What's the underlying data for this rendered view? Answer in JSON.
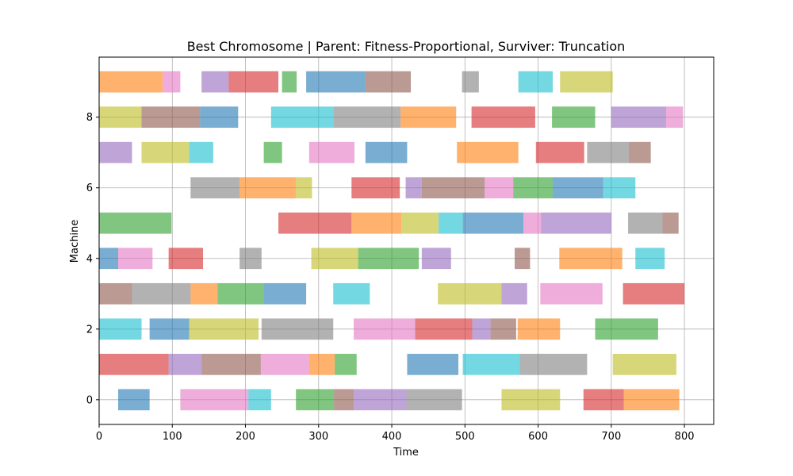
{
  "chart_data": {
    "type": "gantt",
    "title": "Best Chromosome | Parent: Fitness-Proportional, Surviver: Truncation",
    "xlabel": "Time",
    "ylabel": "Machine",
    "xlim": [
      0,
      840
    ],
    "ylim": [
      -0.7,
      9.7
    ],
    "xticks": [
      0,
      100,
      200,
      300,
      400,
      500,
      600,
      700,
      800
    ],
    "yticks": [
      0,
      2,
      4,
      6,
      8
    ],
    "grid": true,
    "bar_opacity": 0.6,
    "job_colors": {
      "0": "#1f77b4",
      "1": "#ff7f0e",
      "2": "#2ca02c",
      "3": "#d62728",
      "4": "#9467bd",
      "5": "#8c564b",
      "6": "#e377c2",
      "7": "#7f7f7f",
      "8": "#bcbd22",
      "9": "#17becf"
    },
    "machines": [
      {
        "machine": 0,
        "tasks": [
          {
            "job": 0,
            "start": 26,
            "end": 69
          },
          {
            "job": 6,
            "start": 111,
            "end": 204
          },
          {
            "job": 9,
            "start": 204,
            "end": 235
          },
          {
            "job": 2,
            "start": 269,
            "end": 321
          },
          {
            "job": 5,
            "start": 321,
            "end": 348
          },
          {
            "job": 4,
            "start": 348,
            "end": 420
          },
          {
            "job": 7,
            "start": 420,
            "end": 496
          },
          {
            "job": 8,
            "start": 550,
            "end": 630
          },
          {
            "job": 3,
            "start": 662,
            "end": 717
          },
          {
            "job": 1,
            "start": 717,
            "end": 793
          }
        ]
      },
      {
        "machine": 1,
        "tasks": [
          {
            "job": 3,
            "start": 0,
            "end": 95
          },
          {
            "job": 4,
            "start": 95,
            "end": 140
          },
          {
            "job": 5,
            "start": 140,
            "end": 221
          },
          {
            "job": 6,
            "start": 221,
            "end": 287
          },
          {
            "job": 1,
            "start": 287,
            "end": 322
          },
          {
            "job": 2,
            "start": 322,
            "end": 352
          },
          {
            "job": 0,
            "start": 421,
            "end": 491
          },
          {
            "job": 9,
            "start": 497,
            "end": 575
          },
          {
            "job": 7,
            "start": 575,
            "end": 667
          },
          {
            "job": 8,
            "start": 702,
            "end": 789
          }
        ]
      },
      {
        "machine": 2,
        "tasks": [
          {
            "job": 9,
            "start": 0,
            "end": 58
          },
          {
            "job": 0,
            "start": 69,
            "end": 123
          },
          {
            "job": 8,
            "start": 123,
            "end": 218
          },
          {
            "job": 7,
            "start": 222,
            "end": 320
          },
          {
            "job": 6,
            "start": 348,
            "end": 432
          },
          {
            "job": 3,
            "start": 432,
            "end": 510
          },
          {
            "job": 4,
            "start": 510,
            "end": 535
          },
          {
            "job": 5,
            "start": 535,
            "end": 570
          },
          {
            "job": 1,
            "start": 572,
            "end": 630
          },
          {
            "job": 2,
            "start": 678,
            "end": 764
          }
        ]
      },
      {
        "machine": 3,
        "tasks": [
          {
            "job": 5,
            "start": 0,
            "end": 45
          },
          {
            "job": 7,
            "start": 45,
            "end": 125
          },
          {
            "job": 1,
            "start": 125,
            "end": 162
          },
          {
            "job": 2,
            "start": 162,
            "end": 225
          },
          {
            "job": 0,
            "start": 225,
            "end": 283
          },
          {
            "job": 9,
            "start": 320,
            "end": 370
          },
          {
            "job": 8,
            "start": 463,
            "end": 550
          },
          {
            "job": 4,
            "start": 550,
            "end": 585
          },
          {
            "job": 6,
            "start": 603,
            "end": 688
          },
          {
            "job": 3,
            "start": 716,
            "end": 800
          }
        ]
      },
      {
        "machine": 4,
        "tasks": [
          {
            "job": 0,
            "start": 0,
            "end": 26
          },
          {
            "job": 6,
            "start": 26,
            "end": 73
          },
          {
            "job": 3,
            "start": 95,
            "end": 142
          },
          {
            "job": 7,
            "start": 192,
            "end": 222
          },
          {
            "job": 8,
            "start": 290,
            "end": 354
          },
          {
            "job": 2,
            "start": 354,
            "end": 437
          },
          {
            "job": 4,
            "start": 441,
            "end": 481
          },
          {
            "job": 5,
            "start": 568,
            "end": 589
          },
          {
            "job": 1,
            "start": 629,
            "end": 715
          },
          {
            "job": 9,
            "start": 733,
            "end": 773
          }
        ]
      },
      {
        "machine": 5,
        "tasks": [
          {
            "job": 2,
            "start": 0,
            "end": 99
          },
          {
            "job": 3,
            "start": 245,
            "end": 345
          },
          {
            "job": 1,
            "start": 345,
            "end": 413
          },
          {
            "job": 8,
            "start": 413,
            "end": 464
          },
          {
            "job": 9,
            "start": 464,
            "end": 497
          },
          {
            "job": 0,
            "start": 497,
            "end": 580
          },
          {
            "job": 6,
            "start": 580,
            "end": 604
          },
          {
            "job": 4,
            "start": 604,
            "end": 700
          },
          {
            "job": 7,
            "start": 723,
            "end": 770
          },
          {
            "job": 5,
            "start": 770,
            "end": 792
          }
        ]
      },
      {
        "machine": 6,
        "tasks": [
          {
            "job": 7,
            "start": 125,
            "end": 192
          },
          {
            "job": 1,
            "start": 192,
            "end": 269
          },
          {
            "job": 8,
            "start": 269,
            "end": 291
          },
          {
            "job": 3,
            "start": 345,
            "end": 411
          },
          {
            "job": 4,
            "start": 419,
            "end": 441
          },
          {
            "job": 5,
            "start": 441,
            "end": 527
          },
          {
            "job": 6,
            "start": 527,
            "end": 566
          },
          {
            "job": 2,
            "start": 566,
            "end": 620
          },
          {
            "job": 0,
            "start": 620,
            "end": 689
          },
          {
            "job": 9,
            "start": 689,
            "end": 733
          }
        ]
      },
      {
        "machine": 7,
        "tasks": [
          {
            "job": 4,
            "start": 0,
            "end": 45
          },
          {
            "job": 8,
            "start": 58,
            "end": 123
          },
          {
            "job": 9,
            "start": 123,
            "end": 156
          },
          {
            "job": 2,
            "start": 225,
            "end": 250
          },
          {
            "job": 6,
            "start": 287,
            "end": 349
          },
          {
            "job": 0,
            "start": 364,
            "end": 421
          },
          {
            "job": 1,
            "start": 489,
            "end": 573
          },
          {
            "job": 3,
            "start": 597,
            "end": 663
          },
          {
            "job": 7,
            "start": 667,
            "end": 724
          },
          {
            "job": 5,
            "start": 724,
            "end": 754
          }
        ]
      },
      {
        "machine": 8,
        "tasks": [
          {
            "job": 8,
            "start": 0,
            "end": 58
          },
          {
            "job": 5,
            "start": 58,
            "end": 138
          },
          {
            "job": 0,
            "start": 138,
            "end": 190
          },
          {
            "job": 9,
            "start": 235,
            "end": 320
          },
          {
            "job": 7,
            "start": 320,
            "end": 412
          },
          {
            "job": 1,
            "start": 412,
            "end": 488
          },
          {
            "job": 3,
            "start": 509,
            "end": 596
          },
          {
            "job": 2,
            "start": 619,
            "end": 678
          },
          {
            "job": 4,
            "start": 700,
            "end": 775
          },
          {
            "job": 6,
            "start": 775,
            "end": 798
          }
        ]
      },
      {
        "machine": 9,
        "tasks": [
          {
            "job": 1,
            "start": 0,
            "end": 87
          },
          {
            "job": 6,
            "start": 87,
            "end": 111
          },
          {
            "job": 4,
            "start": 140,
            "end": 177
          },
          {
            "job": 3,
            "start": 177,
            "end": 245
          },
          {
            "job": 2,
            "start": 250,
            "end": 270
          },
          {
            "job": 0,
            "start": 283,
            "end": 364
          },
          {
            "job": 5,
            "start": 364,
            "end": 426
          },
          {
            "job": 7,
            "start": 496,
            "end": 519
          },
          {
            "job": 9,
            "start": 573,
            "end": 620
          },
          {
            "job": 8,
            "start": 630,
            "end": 702
          }
        ]
      }
    ]
  }
}
